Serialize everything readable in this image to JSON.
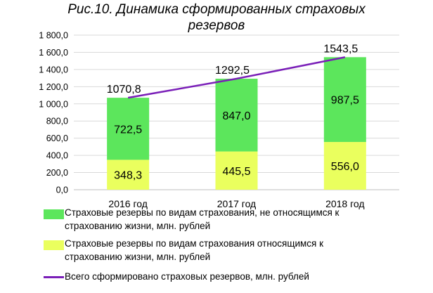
{
  "chart_data": {
    "type": "bar",
    "title_line1": "Рис.10. Динамика сформированных страховых",
    "title_line2": "резервов",
    "categories": [
      "2016 год",
      "2017 год",
      "2018 год"
    ],
    "series": [
      {
        "name": "Страховые резервы по видам страхования относящимся к страхованию жизни, млн. рублей",
        "legend_line1": "Страховые резервы по видам страхования относящимся к",
        "legend_line2": "страхованию жизни, млн. рублей",
        "values": [
          348.3,
          445.5,
          556.0
        ],
        "labels": [
          "348,3",
          "445,5",
          "556,0"
        ],
        "color": "#eaff5e",
        "kind": "stacked-bar"
      },
      {
        "name": "Страховые резервы по видам страхования, не относящимся к страхованию жизни, млн. рублей",
        "legend_line1": "Страховые резервы по видам страхования, не относящимся к",
        "legend_line2": "страхованию жизни, млн. рублей",
        "values": [
          722.5,
          847.0,
          987.5
        ],
        "labels": [
          "722,5",
          "847,0",
          "987,5"
        ],
        "color": "#5ce65c",
        "kind": "stacked-bar"
      },
      {
        "name": "Всего сформировано страховых резервов, млн. рублей",
        "legend_line1": "Всего сформировано страховых резервов, млн. рублей",
        "values": [
          1070.8,
          1292.5,
          1543.5
        ],
        "labels": [
          "1070,8",
          "1292,5",
          "1543,5"
        ],
        "color": "#7a1fb8",
        "kind": "line"
      }
    ],
    "y_ticks": [
      "0,0",
      "200,0",
      "400,0",
      "600,0",
      "800,0",
      "1 000,0",
      "1 200,0",
      "1 400,0",
      "1 600,0",
      "1 800,0"
    ],
    "ylim": [
      0,
      1800
    ],
    "grid": true,
    "legend_position": "bottom"
  }
}
